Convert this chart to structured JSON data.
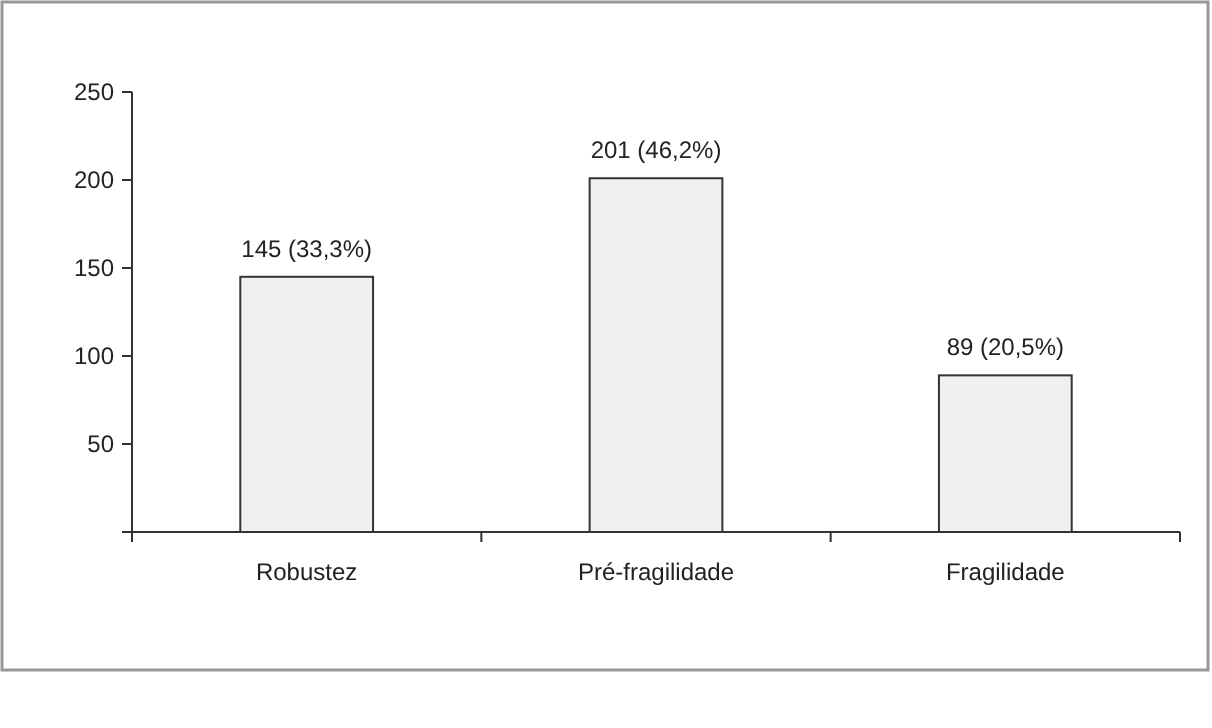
{
  "chart_data": {
    "type": "bar",
    "categories": [
      "Robustez",
      "Pré-fragilidade",
      "Fragilidade"
    ],
    "values": [
      145,
      201,
      89
    ],
    "value_labels": [
      "145 (33,3%)",
      "201 (46,2%)",
      "89 (20,5%)"
    ],
    "color": "#f0f0f0",
    "ylim": [
      0,
      250
    ],
    "yticks": [
      {
        "value": 0,
        "label": null
      },
      50,
      100,
      150,
      200,
      250
    ],
    "grid": false
  }
}
